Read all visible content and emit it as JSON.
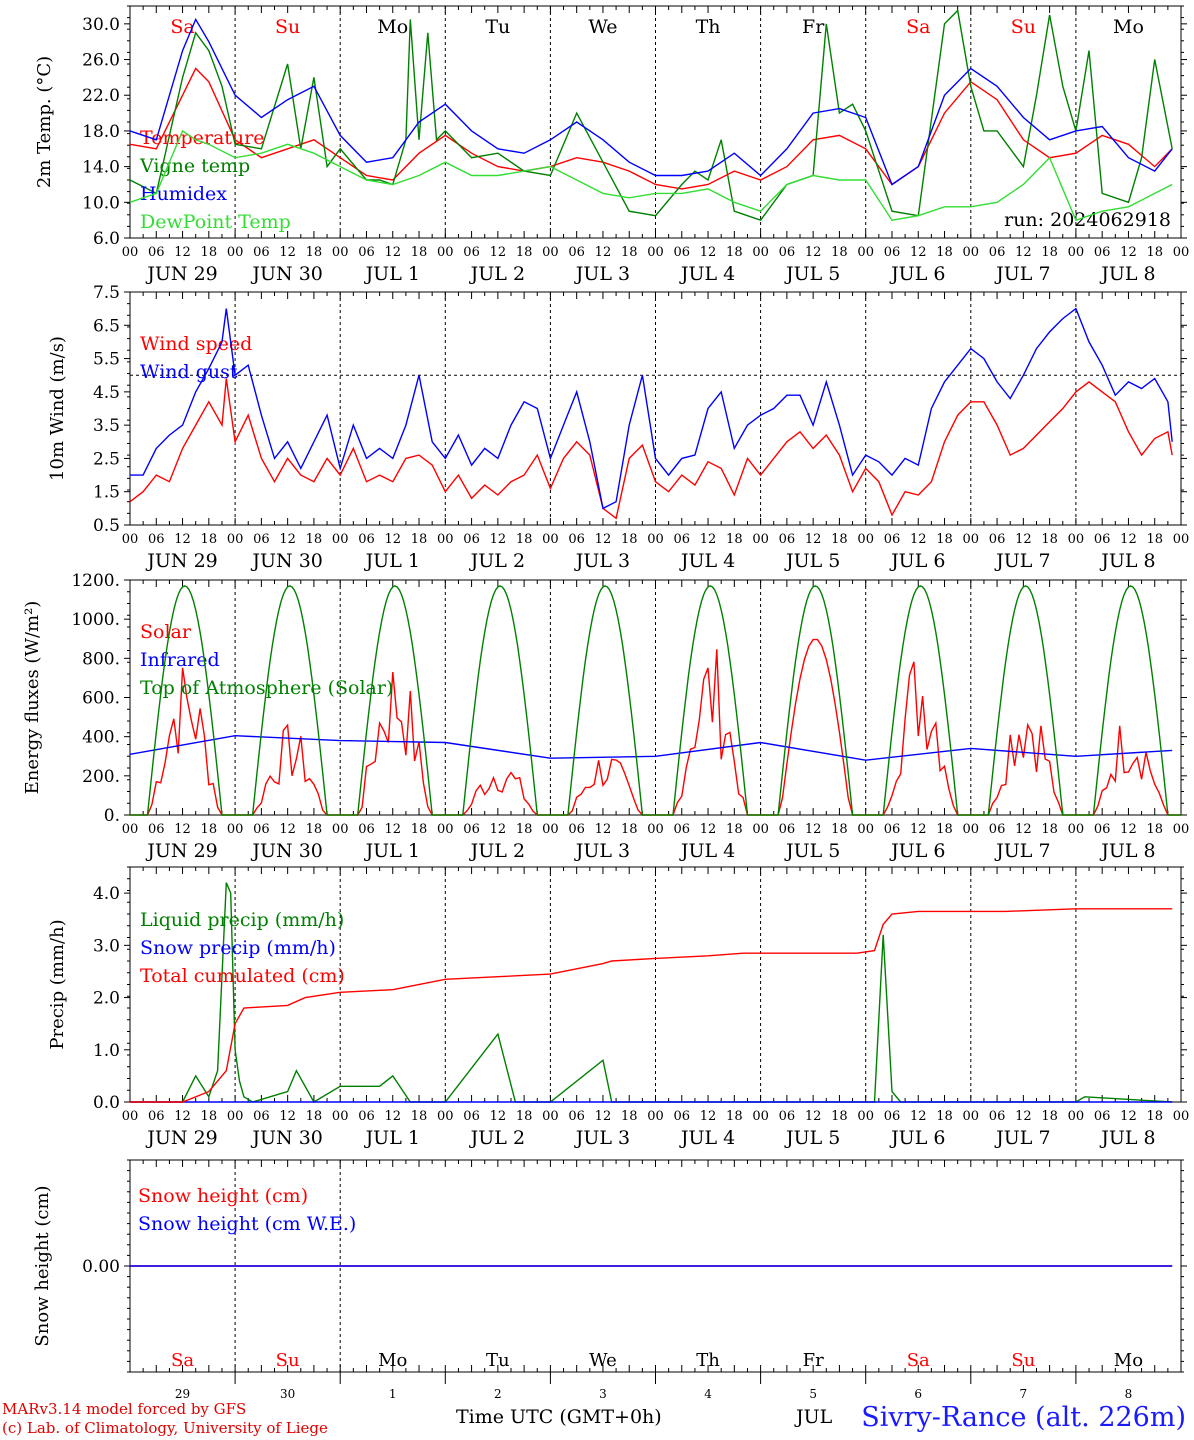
{
  "chart_data": [
    {
      "type": "line",
      "panel": "temperature",
      "ylabel": "2m Temp. (°C)",
      "ylim": [
        6.0,
        32.0
      ],
      "yticks": [
        6.0,
        10.0,
        14.0,
        18.0,
        22.0,
        26.0,
        30.0
      ],
      "run_label": "run: 2024062918",
      "series": [
        {
          "name": "Temperature",
          "color": "#ff0000",
          "x": [
            0,
            6,
            12,
            15,
            18,
            24,
            30,
            36,
            42,
            48,
            54,
            60,
            66,
            72,
            78,
            84,
            90,
            96,
            102,
            108,
            114,
            120,
            126,
            132,
            138,
            144,
            150,
            156,
            162,
            168,
            174,
            180,
            186,
            192,
            198,
            204,
            210,
            216,
            222,
            228,
            234,
            238
          ],
          "values": [
            16.5,
            16,
            22,
            25,
            23.5,
            17,
            15,
            16,
            17,
            15,
            13,
            12.5,
            15.5,
            17.5,
            15.5,
            14,
            13.5,
            14,
            15,
            14.5,
            13.5,
            12,
            11.5,
            12,
            13.5,
            12.5,
            14,
            17,
            17.5,
            16,
            12,
            14,
            20,
            23.5,
            21.5,
            17,
            15,
            15.5,
            17.5,
            16.5,
            14,
            16
          ]
        },
        {
          "name": "Vigne temp",
          "color": "#008000",
          "x": [
            0,
            6,
            12,
            15,
            18,
            21,
            24,
            30,
            36,
            39,
            42,
            45,
            48,
            54,
            57,
            60,
            63,
            64,
            66,
            68,
            70,
            72,
            78,
            84,
            90,
            96,
            102,
            108,
            114,
            120,
            126,
            129,
            132,
            135,
            138,
            144,
            150,
            156,
            159,
            162,
            165,
            168,
            174,
            180,
            186,
            189,
            192,
            195,
            198,
            204,
            207,
            210,
            213,
            216,
            219,
            222,
            228,
            231,
            234,
            238
          ],
          "values": [
            12.5,
            11,
            24,
            29,
            27,
            23,
            16.5,
            16,
            25.5,
            16,
            24,
            14,
            16,
            12.5,
            12.5,
            12,
            17,
            30.5,
            17,
            29,
            17,
            18,
            15,
            15.5,
            13.5,
            13,
            20,
            14.5,
            9,
            8.5,
            12,
            13.5,
            12.5,
            17,
            9,
            8,
            12,
            13,
            30,
            20,
            21,
            18,
            9,
            8.5,
            30,
            31.5,
            23,
            18,
            18,
            14,
            22,
            31,
            23,
            18,
            27,
            11,
            10,
            15,
            26,
            16
          ]
        },
        {
          "name": "Humidex",
          "color": "#0000ff",
          "x": [
            0,
            6,
            12,
            15,
            18,
            24,
            30,
            36,
            42,
            48,
            54,
            60,
            66,
            72,
            78,
            84,
            90,
            96,
            102,
            108,
            114,
            120,
            126,
            132,
            138,
            144,
            150,
            156,
            162,
            168,
            174,
            180,
            186,
            192,
            198,
            204,
            210,
            216,
            222,
            228,
            234,
            238
          ],
          "values": [
            18,
            17,
            27,
            30.5,
            28,
            22,
            19.5,
            21.5,
            23,
            17.5,
            14.5,
            15,
            19,
            21,
            18,
            16,
            15.5,
            17,
            19,
            17,
            14.5,
            13,
            13,
            13.5,
            15.5,
            13,
            16,
            20,
            20.5,
            19.5,
            12,
            14,
            22,
            25,
            23,
            19.5,
            17,
            18,
            18.5,
            15,
            13.5,
            16
          ]
        },
        {
          "name": "DewPoint Temp",
          "color": "#33dd33",
          "x": [
            0,
            6,
            12,
            15,
            18,
            24,
            30,
            36,
            42,
            48,
            54,
            60,
            66,
            72,
            78,
            84,
            90,
            96,
            102,
            108,
            114,
            120,
            126,
            132,
            138,
            144,
            150,
            156,
            162,
            168,
            174,
            180,
            186,
            192,
            198,
            204,
            210,
            216,
            222,
            228,
            234,
            238
          ],
          "values": [
            10,
            11,
            18,
            17,
            16.5,
            15,
            15.5,
            16.5,
            15.5,
            14,
            12.5,
            12,
            13,
            14.5,
            13,
            13,
            13.5,
            14,
            12.5,
            11,
            10.5,
            11,
            11,
            11.5,
            10,
            9,
            12,
            13,
            12.5,
            12.5,
            8,
            8.5,
            9.5,
            9.5,
            10,
            12,
            15,
            8,
            9,
            9.5,
            11,
            12
          ]
        }
      ]
    },
    {
      "type": "line",
      "panel": "wind",
      "ylabel": "10m Wind (m/s)",
      "ylim": [
        0.5,
        7.5
      ],
      "yticks": [
        0.5,
        1.5,
        2.5,
        3.5,
        4.5,
        5.5,
        6.5,
        7.5
      ],
      "reference_line": 5.0,
      "series": [
        {
          "name": "Wind speed",
          "color": "#ff0000",
          "x": [
            0,
            3,
            6,
            9,
            12,
            15,
            18,
            21,
            22,
            24,
            27,
            30,
            33,
            36,
            39,
            42,
            45,
            48,
            51,
            54,
            57,
            60,
            63,
            66,
            69,
            72,
            75,
            78,
            81,
            84,
            87,
            90,
            93,
            96,
            99,
            102,
            105,
            108,
            111,
            114,
            117,
            120,
            123,
            126,
            129,
            132,
            135,
            138,
            141,
            144,
            147,
            150,
            153,
            156,
            159,
            162,
            165,
            168,
            171,
            174,
            177,
            180,
            183,
            186,
            189,
            192,
            195,
            198,
            201,
            204,
            207,
            210,
            213,
            216,
            219,
            222,
            225,
            228,
            231,
            234,
            237,
            238
          ],
          "values": [
            1.2,
            1.5,
            2.0,
            1.8,
            2.8,
            3.5,
            4.2,
            3.5,
            4.9,
            3.0,
            3.8,
            2.5,
            1.8,
            2.5,
            2.0,
            1.8,
            2.5,
            2.0,
            2.8,
            1.8,
            2.0,
            1.8,
            2.5,
            2.6,
            2.3,
            1.5,
            2.0,
            1.3,
            1.7,
            1.4,
            1.8,
            2.0,
            2.6,
            1.6,
            2.5,
            3.0,
            2.6,
            1.0,
            0.7,
            2.5,
            2.9,
            1.8,
            1.5,
            2.0,
            1.7,
            2.4,
            2.2,
            1.4,
            2.5,
            2.0,
            2.5,
            3.0,
            3.3,
            2.8,
            3.2,
            2.6,
            1.5,
            2.2,
            1.8,
            0.8,
            1.5,
            1.4,
            1.8,
            3.0,
            3.8,
            4.2,
            4.2,
            3.5,
            2.6,
            2.8,
            3.2,
            3.6,
            4.0,
            4.5,
            4.8,
            4.5,
            4.2,
            3.3,
            2.6,
            3.1,
            3.3,
            2.6
          ]
        },
        {
          "name": "Wind gust",
          "color": "#0000ff",
          "x": [
            0,
            3,
            6,
            9,
            12,
            15,
            18,
            21,
            22,
            24,
            27,
            30,
            33,
            36,
            39,
            42,
            45,
            48,
            51,
            54,
            57,
            60,
            63,
            66,
            69,
            72,
            75,
            78,
            81,
            84,
            87,
            90,
            93,
            96,
            99,
            102,
            105,
            108,
            111,
            114,
            117,
            120,
            123,
            126,
            129,
            132,
            135,
            138,
            141,
            144,
            147,
            150,
            153,
            156,
            159,
            162,
            165,
            168,
            171,
            174,
            177,
            180,
            183,
            186,
            189,
            192,
            195,
            198,
            201,
            204,
            207,
            210,
            213,
            216,
            219,
            222,
            225,
            228,
            231,
            234,
            237,
            238
          ],
          "values": [
            2.0,
            2.0,
            2.8,
            3.2,
            3.5,
            4.5,
            5.2,
            6.0,
            7.0,
            5.0,
            5.3,
            3.8,
            2.5,
            3.0,
            2.2,
            3.0,
            3.8,
            2.2,
            3.5,
            2.5,
            2.8,
            2.5,
            3.5,
            5.0,
            3.0,
            2.5,
            3.2,
            2.3,
            2.8,
            2.5,
            3.5,
            4.2,
            4.0,
            2.5,
            3.5,
            4.5,
            3.0,
            1.0,
            1.2,
            3.5,
            5.0,
            2.5,
            2.0,
            2.5,
            2.6,
            4.0,
            4.5,
            2.8,
            3.5,
            3.8,
            4.0,
            4.4,
            4.4,
            3.5,
            4.8,
            3.5,
            2.0,
            2.6,
            2.4,
            2.0,
            2.5,
            2.3,
            4.0,
            4.8,
            5.3,
            5.8,
            5.5,
            4.8,
            4.3,
            5.0,
            5.8,
            6.3,
            6.7,
            7.0,
            6.0,
            5.3,
            4.4,
            4.8,
            4.6,
            4.9,
            4.2,
            3.0
          ]
        }
      ]
    },
    {
      "type": "line",
      "panel": "energy",
      "ylabel": "Energy fluxes (W/m²)",
      "ylim": [
        0,
        1200
      ],
      "yticks": [
        0,
        200,
        400,
        600,
        800,
        1000,
        1200
      ],
      "ytick_labels": [
        "0.",
        "200.",
        "400.",
        "600.",
        "800.",
        "1000.",
        "1200."
      ],
      "series": [
        {
          "name": "Solar",
          "color": "#ff0000",
          "day_peaks": [
            820,
            470,
            860,
            310,
            350,
            910,
            900,
            910,
            700,
            560
          ]
        },
        {
          "name": "Infrared",
          "color": "#0000ff",
          "x": [
            0,
            24,
            48,
            72,
            96,
            120,
            144,
            168,
            192,
            216,
            238
          ],
          "values": [
            310,
            405,
            380,
            370,
            290,
            300,
            370,
            280,
            340,
            300,
            330
          ]
        },
        {
          "name": "Top of Atmosphere (Solar)",
          "color": "#008000",
          "daily_peak": 1170,
          "daylight_hours": [
            4,
            21
          ]
        }
      ]
    },
    {
      "type": "line",
      "panel": "precipitation",
      "ylabel": "Precip (mm/h)",
      "ylim": [
        0.0,
        4.5
      ],
      "yticks": [
        0.0,
        1.0,
        2.0,
        3.0,
        4.0
      ],
      "series": [
        {
          "name": "Liquid precip (mm/h)",
          "color": "#008000",
          "x": [
            0,
            12,
            15,
            18,
            20,
            22,
            23,
            24,
            25,
            26,
            28,
            36,
            38,
            42,
            48,
            57,
            60,
            64,
            72,
            84,
            88,
            96,
            108,
            110,
            114,
            132,
            135,
            138,
            158,
            170,
            172,
            174,
            176,
            216,
            218,
            238
          ],
          "values": [
            0,
            0,
            0.5,
            0.1,
            0.6,
            4.2,
            4.0,
            1.0,
            0.4,
            0.1,
            0,
            0.2,
            0.6,
            0,
            0.3,
            0.3,
            0.5,
            0,
            0,
            1.3,
            0,
            0,
            0.8,
            0,
            0,
            0,
            0,
            0,
            0,
            0,
            3.2,
            0.2,
            0,
            0,
            0.1,
            0
          ]
        },
        {
          "name": "Snow precip (mm/h)",
          "color": "#0000ff",
          "x": [
            0,
            238
          ],
          "values": [
            0,
            0
          ]
        },
        {
          "name": "Total cumulated (cm)",
          "color": "#ff0000",
          "x": [
            0,
            12,
            18,
            22,
            24,
            26,
            36,
            40,
            48,
            60,
            72,
            84,
            96,
            108,
            110,
            120,
            132,
            140,
            150,
            166,
            170,
            172,
            174,
            180,
            200,
            216,
            238
          ],
          "values": [
            0,
            0,
            0.2,
            0.6,
            1.5,
            1.8,
            1.85,
            2.0,
            2.1,
            2.15,
            2.35,
            2.4,
            2.45,
            2.65,
            2.7,
            2.75,
            2.8,
            2.85,
            2.85,
            2.85,
            2.9,
            3.4,
            3.6,
            3.65,
            3.65,
            3.7,
            3.7
          ]
        }
      ]
    },
    {
      "type": "line",
      "panel": "snow",
      "ylabel": "Snow height (cm)",
      "ylim": [
        -1,
        1
      ],
      "yticks": [
        0.0
      ],
      "ytick_labels": [
        "0.00"
      ],
      "series": [
        {
          "name": "Snow height (cm)",
          "color": "#ff0000",
          "x": [
            0,
            238
          ],
          "values": [
            0,
            0
          ]
        },
        {
          "name": "Snow height (cm W.E.)",
          "color": "#0000ff",
          "x": [
            0,
            238
          ],
          "values": [
            0,
            0
          ]
        }
      ]
    }
  ],
  "x_axis": {
    "hour_ticks": [
      "00",
      "06",
      "12",
      "18"
    ],
    "day_labels": [
      "JUN 29",
      "JUN 30",
      "JUL  1",
      "JUL  2",
      "JUL  3",
      "JUL  4",
      "JUL  5",
      "JUL  6",
      "JUL  7",
      "JUL  8"
    ],
    "weekday_labels": [
      "Sa",
      "Su",
      "Mo",
      "Tu",
      "We",
      "Th",
      "Fr",
      "Sa",
      "Su",
      "Mo"
    ],
    "weekend_color": "#ff0000",
    "weekday_color": "#000000",
    "bottom_day_numbers": [
      "29",
      "30",
      "1",
      "2",
      "3",
      "4",
      "5",
      "6",
      "7",
      "8"
    ]
  },
  "footer": {
    "credit_line_1": "MARv3.14 model forced by GFS",
    "credit_line_2": "(c) Lab. of Climatology, University of Liege",
    "x_title": "Time UTC (GMT+0h)",
    "jul_label": "JUL",
    "station": "Sivry-Rance (alt. 226m)"
  }
}
